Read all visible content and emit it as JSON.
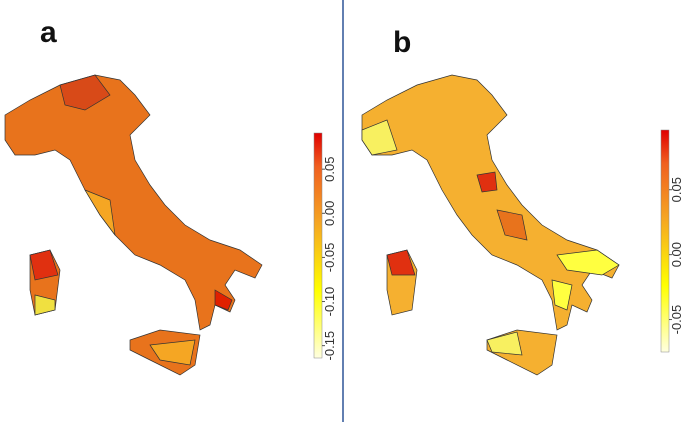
{
  "panels": [
    {
      "label": "a",
      "colorbar": {
        "lim": [
          -0.164,
          0.091
        ],
        "ticks": [
          {
            "value": -0.15,
            "label": "-0.15"
          },
          {
            "value": -0.1,
            "label": "-0.10"
          },
          {
            "value": -0.05,
            "label": "-0.05"
          },
          {
            "value": 0,
            "label": "0.00"
          },
          {
            "value": 0.05,
            "label": "0.05"
          }
        ]
      }
    },
    {
      "label": "b",
      "colorbar": {
        "lim": [
          -0.075,
          0.096
        ],
        "ticks": [
          {
            "value": -0.05,
            "label": "-0.05"
          },
          {
            "value": 0,
            "label": "0.00"
          },
          {
            "value": 0.05,
            "label": "0.05"
          }
        ]
      }
    }
  ]
}
